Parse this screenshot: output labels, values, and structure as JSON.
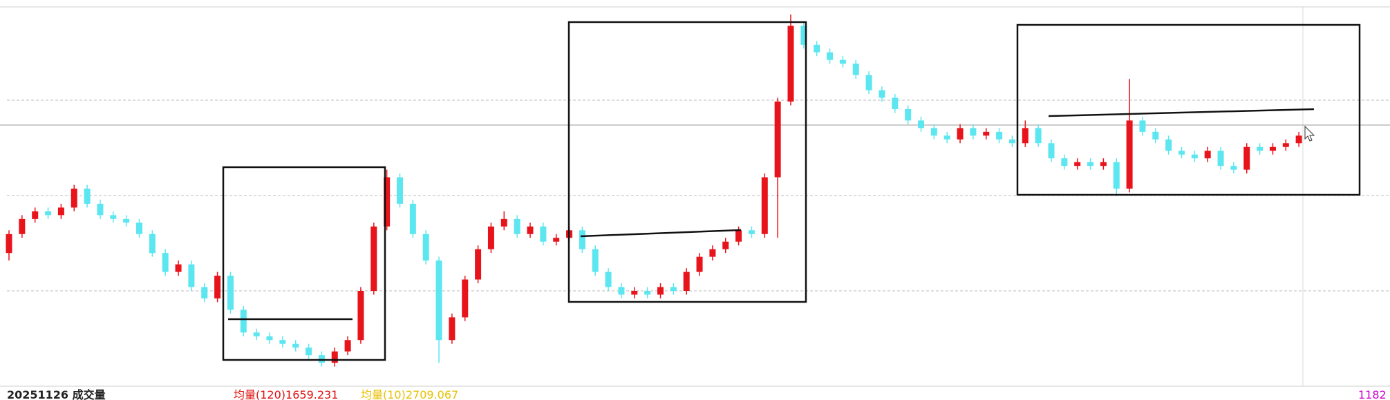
{
  "chart_data": {
    "type": "candlestick",
    "up_color": "#e8141c",
    "down_color": "#5ce6f0",
    "ylim": [
      0,
      100
    ],
    "candles": [
      [
        35,
        41,
        33,
        40
      ],
      [
        40,
        45,
        39,
        44
      ],
      [
        44,
        47,
        43,
        46
      ],
      [
        46,
        47,
        44,
        45
      ],
      [
        45,
        48,
        44,
        47
      ],
      [
        47,
        53,
        46,
        52
      ],
      [
        52,
        53,
        47,
        48
      ],
      [
        48,
        49,
        44,
        45
      ],
      [
        45,
        46,
        43,
        44
      ],
      [
        44,
        45,
        42,
        43
      ],
      [
        43,
        44,
        39,
        40
      ],
      [
        40,
        41,
        34,
        35
      ],
      [
        35,
        36,
        29,
        30
      ],
      [
        30,
        33,
        29,
        32
      ],
      [
        32,
        33,
        25,
        26
      ],
      [
        26,
        27,
        22,
        23
      ],
      [
        23,
        30,
        22,
        29
      ],
      [
        29,
        30,
        19,
        20
      ],
      [
        20,
        21,
        13,
        14
      ],
      [
        14,
        15,
        12,
        13
      ],
      [
        13,
        14,
        11,
        12
      ],
      [
        12,
        13,
        10,
        11
      ],
      [
        11,
        12,
        9,
        10
      ],
      [
        10,
        11,
        7,
        8
      ],
      [
        8,
        9,
        5,
        6
      ],
      [
        6,
        10,
        5,
        9
      ],
      [
        9,
        13,
        8,
        12
      ],
      [
        12,
        26,
        11,
        25
      ],
      [
        25,
        43,
        24,
        42
      ],
      [
        42,
        57,
        41,
        55
      ],
      [
        55,
        56,
        47,
        48
      ],
      [
        48,
        49,
        39,
        40
      ],
      [
        40,
        41,
        32,
        33
      ],
      [
        33,
        34,
        6,
        12
      ],
      [
        12,
        19,
        11,
        18
      ],
      [
        18,
        29,
        17,
        28
      ],
      [
        28,
        37,
        27,
        36
      ],
      [
        36,
        43,
        35,
        42
      ],
      [
        42,
        46,
        41,
        44
      ],
      [
        44,
        45,
        39,
        40
      ],
      [
        40,
        43,
        39,
        42
      ],
      [
        42,
        43,
        37,
        38
      ],
      [
        38,
        40,
        37,
        39
      ],
      [
        39,
        42,
        38,
        41
      ],
      [
        41,
        42,
        35,
        36
      ],
      [
        36,
        37,
        29,
        30
      ],
      [
        30,
        31,
        25,
        26
      ],
      [
        26,
        27,
        23,
        24
      ],
      [
        24,
        26,
        23,
        25
      ],
      [
        25,
        26,
        23,
        24
      ],
      [
        24,
        27,
        23,
        26
      ],
      [
        26,
        27,
        24,
        25
      ],
      [
        25,
        31,
        24,
        30
      ],
      [
        30,
        35,
        29,
        34
      ],
      [
        34,
        37,
        33,
        36
      ],
      [
        36,
        39,
        35,
        38
      ],
      [
        38,
        42,
        37,
        41
      ],
      [
        41,
        42,
        39,
        40
      ],
      [
        40,
        56,
        39,
        55
      ],
      [
        55,
        76,
        39,
        75
      ],
      [
        75,
        98,
        74,
        95
      ],
      [
        95,
        96,
        89,
        90
      ],
      [
        90,
        91,
        87,
        88
      ],
      [
        88,
        89,
        85,
        86
      ],
      [
        86,
        87,
        84,
        85
      ],
      [
        85,
        86,
        81,
        82
      ],
      [
        82,
        83,
        77,
        78
      ],
      [
        78,
        79,
        75,
        76
      ],
      [
        76,
        77,
        72,
        73
      ],
      [
        73,
        74,
        69,
        70
      ],
      [
        70,
        71,
        67,
        68
      ],
      [
        68,
        69,
        65,
        66
      ],
      [
        66,
        67,
        64,
        65
      ],
      [
        65,
        69,
        64,
        68
      ],
      [
        68,
        69,
        65,
        66
      ],
      [
        66,
        68,
        65,
        67
      ],
      [
        67,
        68,
        64,
        65
      ],
      [
        65,
        66,
        63,
        64
      ],
      [
        64,
        70,
        63,
        68
      ],
      [
        68,
        69,
        63,
        64
      ],
      [
        64,
        65,
        59,
        60
      ],
      [
        60,
        61,
        57,
        58
      ],
      [
        58,
        60,
        57,
        59
      ],
      [
        59,
        60,
        57,
        58
      ],
      [
        58,
        60,
        57,
        59
      ],
      [
        59,
        60,
        50,
        52
      ],
      [
        52,
        81,
        51,
        70
      ],
      [
        70,
        71,
        66,
        67
      ],
      [
        67,
        68,
        64,
        65
      ],
      [
        65,
        66,
        61,
        62
      ],
      [
        62,
        63,
        60,
        61
      ],
      [
        61,
        62,
        59,
        60
      ],
      [
        60,
        63,
        59,
        62
      ],
      [
        62,
        63,
        57,
        58
      ],
      [
        58,
        59,
        56,
        57
      ],
      [
        57,
        64,
        56,
        63
      ],
      [
        63,
        64,
        61,
        62
      ],
      [
        62,
        64,
        61,
        63
      ],
      [
        63,
        65,
        62,
        64
      ],
      [
        64,
        67,
        63,
        66
      ]
    ]
  },
  "footer": {
    "volume_title": "20251126 成交量",
    "ma120": "均量(120)1659.231",
    "ma10": "均量(10)2709.067",
    "last_value": "1182"
  }
}
